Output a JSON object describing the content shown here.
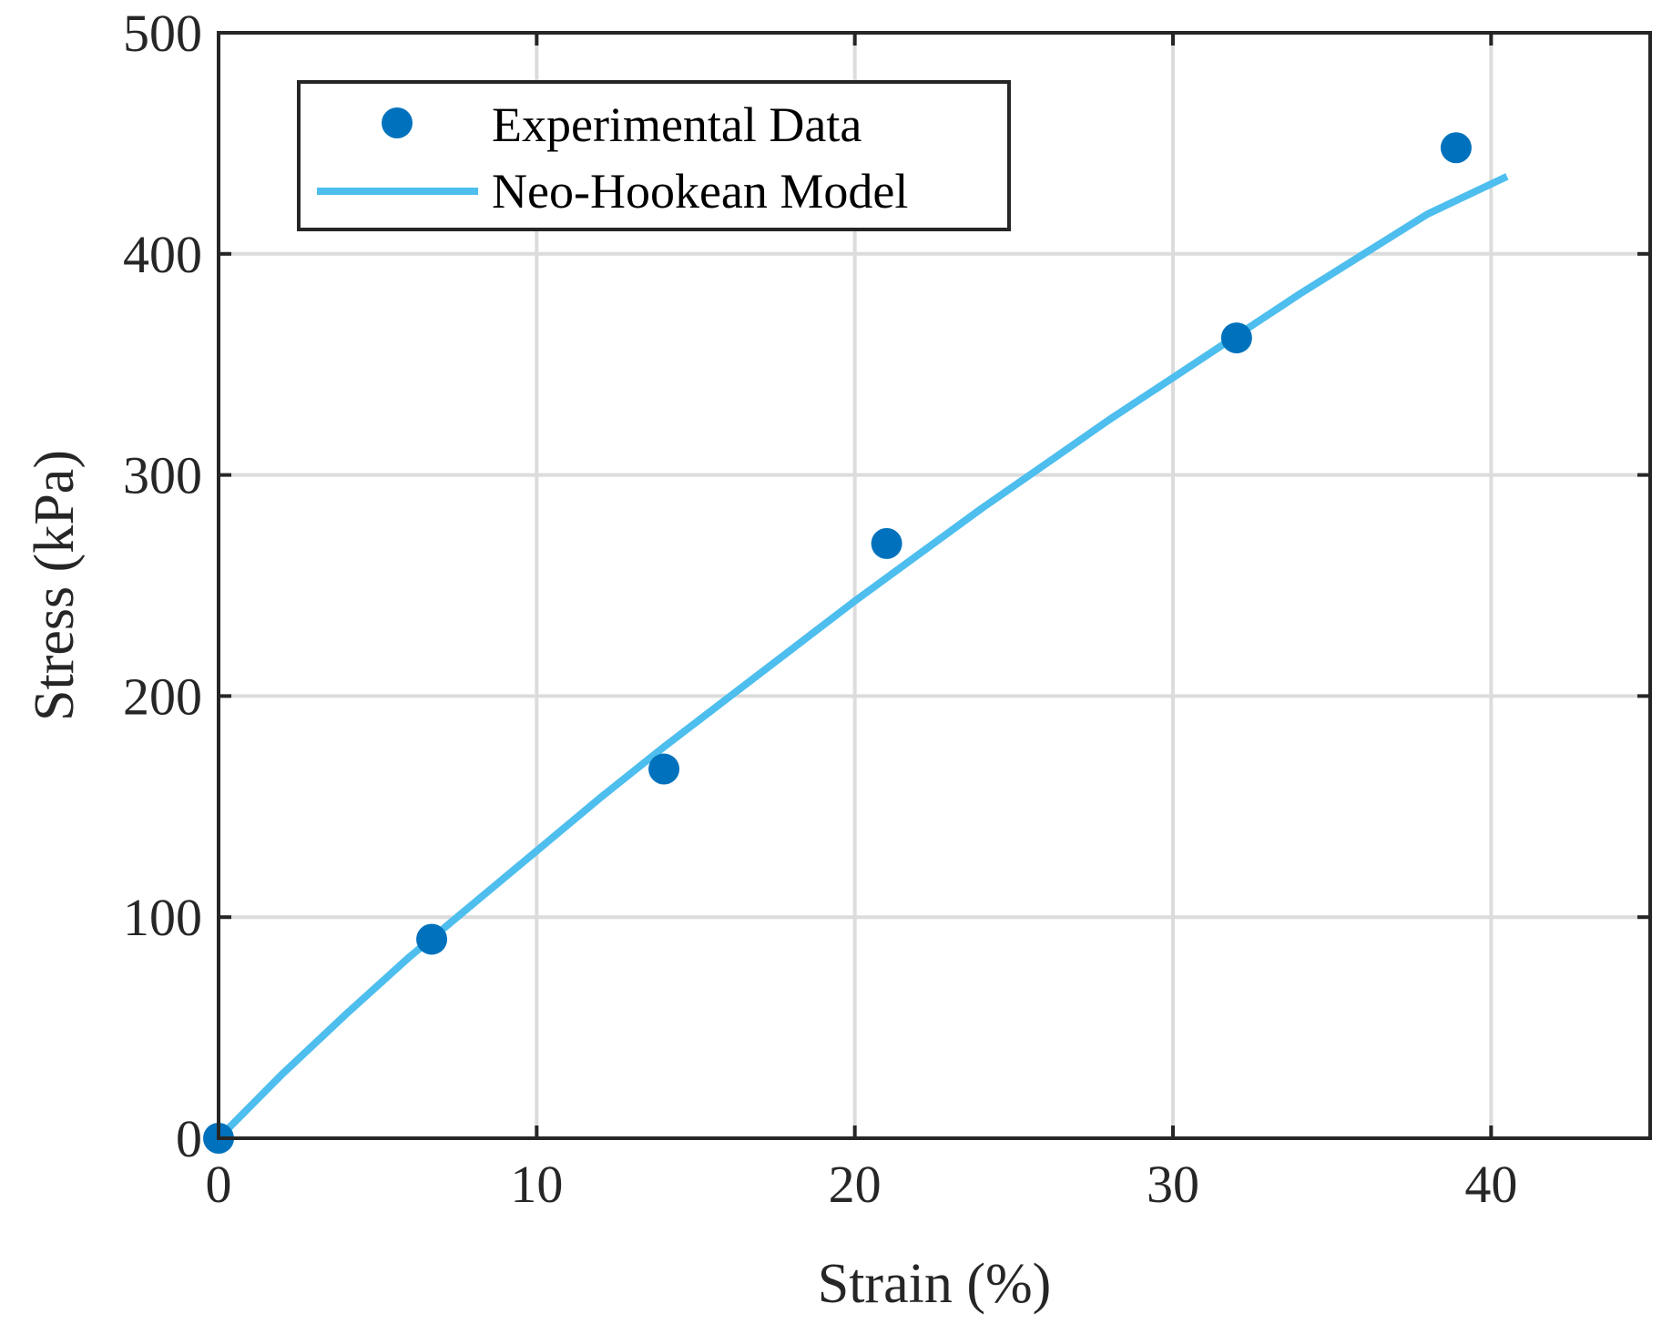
{
  "chart_data": {
    "type": "scatter+line",
    "title": "",
    "xlabel": "Strain (%)",
    "ylabel": "Stress (kPa)",
    "xlim": [
      0,
      45
    ],
    "ylim": [
      0,
      500
    ],
    "xticks": [
      0,
      10,
      20,
      30,
      40
    ],
    "yticks": [
      0,
      100,
      200,
      300,
      400,
      500
    ],
    "xtick_labels": [
      "0",
      "10",
      "20",
      "30",
      "40"
    ],
    "ytick_labels": [
      "0",
      "100",
      "200",
      "300",
      "400",
      "500"
    ],
    "grid": true,
    "legend_position": "top-left",
    "series": [
      {
        "name": "Experimental Data",
        "kind": "scatter",
        "color": "#0072bd",
        "x": [
          0,
          6.7,
          14,
          21,
          32,
          38.9
        ],
        "y": [
          0,
          90,
          167,
          269,
          362,
          448
        ]
      },
      {
        "name": "Neo-Hookean Model",
        "kind": "line",
        "color": "#4dbeee",
        "x": [
          0,
          2,
          4,
          6,
          8,
          10,
          12,
          14,
          16,
          18,
          20,
          22,
          24,
          26,
          28,
          30,
          32,
          34,
          36,
          38,
          40.5
        ],
        "y": [
          0,
          29,
          56,
          82,
          106,
          130,
          154,
          177,
          199,
          221,
          243,
          264,
          285,
          305,
          325,
          344,
          363,
          382,
          400,
          418,
          435
        ]
      }
    ]
  }
}
